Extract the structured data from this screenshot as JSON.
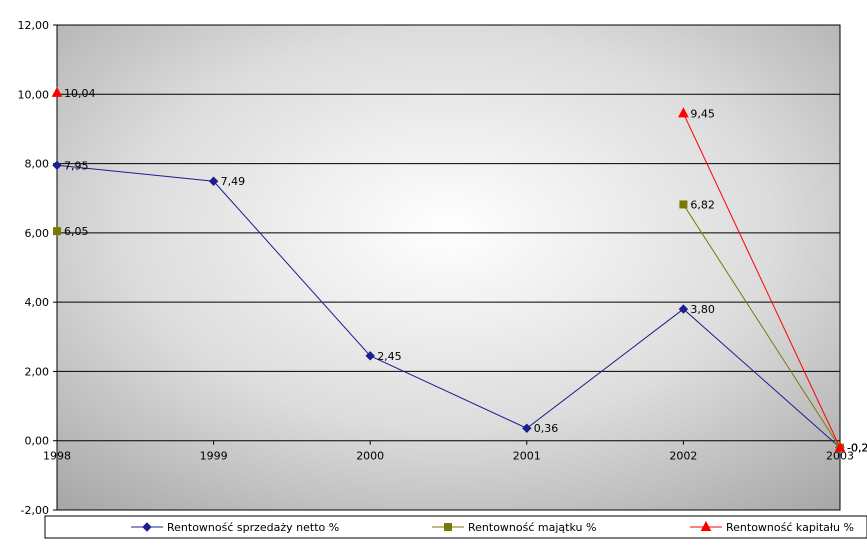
{
  "chart_data": {
    "type": "line",
    "categories": [
      "1998",
      "1999",
      "2000",
      "2001",
      "2002",
      "2003"
    ],
    "ylim": [
      -2,
      12
    ],
    "yticks": [
      -2,
      0,
      2,
      4,
      6,
      8,
      10,
      12
    ],
    "ytick_labels": [
      "-2,00",
      "0,00",
      "2,00",
      "4,00",
      "6,00",
      "8,00",
      "10,00",
      "12,00"
    ],
    "grid": "horizontal",
    "legend_position": "bottom",
    "series": [
      {
        "name": "Rentowność sprzedaży netto %",
        "color": "#1b1f8f",
        "marker": "diamond",
        "values": [
          7.95,
          7.49,
          2.45,
          0.36,
          3.8,
          -0.2
        ],
        "labels": [
          "7,95",
          "7,49",
          "2,45",
          "0,36",
          "3,80",
          "-0,2"
        ]
      },
      {
        "name": "Rentowność majątku %",
        "color": "#7a7a00",
        "marker": "square",
        "values": [
          6.05,
          null,
          null,
          null,
          6.82,
          -0.2
        ],
        "labels": [
          "6,05",
          "",
          "",
          "",
          "6,82",
          "-0,2"
        ]
      },
      {
        "name": "Rentowność kapitału %",
        "color": "#ff0000",
        "marker": "triangle",
        "values": [
          10.04,
          null,
          null,
          null,
          9.45,
          -0.2
        ],
        "labels": [
          "10,04",
          "",
          "",
          "",
          "9,45",
          "-0,2"
        ]
      }
    ]
  }
}
